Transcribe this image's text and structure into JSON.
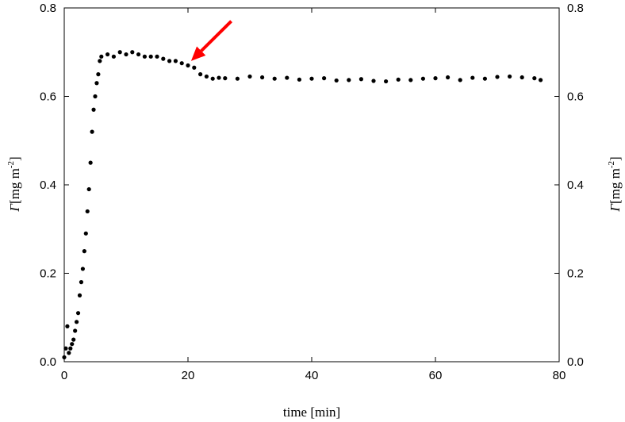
{
  "chart_data": {
    "type": "scatter",
    "xlabel": "time [min]",
    "ylabel": {
      "symbol": "Γ",
      "unit_prefix": "[mg m",
      "exponent": "-2",
      "unit_suffix": "]"
    },
    "xlim": [
      0,
      80
    ],
    "ylim": [
      0,
      0.8
    ],
    "xticks": [
      "0",
      "20",
      "40",
      "60",
      "80"
    ],
    "yticks": [
      "0.0",
      "0.2",
      "0.4",
      "0.6",
      "0.8"
    ],
    "yticks_right": [
      "0.0",
      "0.2",
      "0.4",
      "0.6",
      "0.8"
    ],
    "grid": false,
    "marker_color": "#000000",
    "annotation": {
      "type": "arrow",
      "color": "#ff0000",
      "from": [
        27.0,
        0.77
      ],
      "to": [
        20.5,
        0.68
      ]
    },
    "series": [
      {
        "x": [
          0.0,
          0.25,
          0.5,
          0.75,
          1.0,
          1.25,
          1.5,
          1.75,
          2.0,
          2.25,
          2.5,
          2.75,
          3.0,
          3.25,
          3.5,
          3.75,
          4.0,
          4.25,
          4.5,
          4.75,
          5.0,
          5.25,
          5.5,
          5.75,
          6.0,
          7.0,
          8.0,
          9.0,
          10.0,
          11.0,
          12.0,
          13.0,
          14.0,
          15.0,
          16.0,
          17.0,
          18.0,
          19.0,
          20.0,
          21.0,
          22.0,
          23.0,
          24.0,
          25.0,
          26.0,
          28.0,
          30.0,
          32.0,
          34.0,
          36.0,
          38.0,
          40.0,
          42.0,
          44.0,
          46.0,
          48.0,
          50.0,
          52.0,
          54.0,
          56.0,
          58.0,
          60.0,
          62.0,
          64.0,
          66.0,
          68.0,
          70.0,
          72.0,
          74.0,
          76.0,
          77.0
        ],
        "y": [
          0.01,
          0.03,
          0.08,
          0.02,
          0.03,
          0.04,
          0.05,
          0.07,
          0.09,
          0.11,
          0.15,
          0.18,
          0.21,
          0.25,
          0.29,
          0.34,
          0.39,
          0.45,
          0.52,
          0.57,
          0.6,
          0.63,
          0.65,
          0.68,
          0.69,
          0.695,
          0.69,
          0.7,
          0.695,
          0.7,
          0.695,
          0.69,
          0.69,
          0.69,
          0.685,
          0.68,
          0.68,
          0.675,
          0.67,
          0.665,
          0.65,
          0.645,
          0.64,
          0.642,
          0.641,
          0.64,
          0.645,
          0.643,
          0.64,
          0.642,
          0.638,
          0.64,
          0.641,
          0.636,
          0.637,
          0.639,
          0.635,
          0.634,
          0.638,
          0.637,
          0.64,
          0.641,
          0.643,
          0.637,
          0.642,
          0.64,
          0.644,
          0.645,
          0.643,
          0.641,
          0.637
        ]
      }
    ]
  }
}
